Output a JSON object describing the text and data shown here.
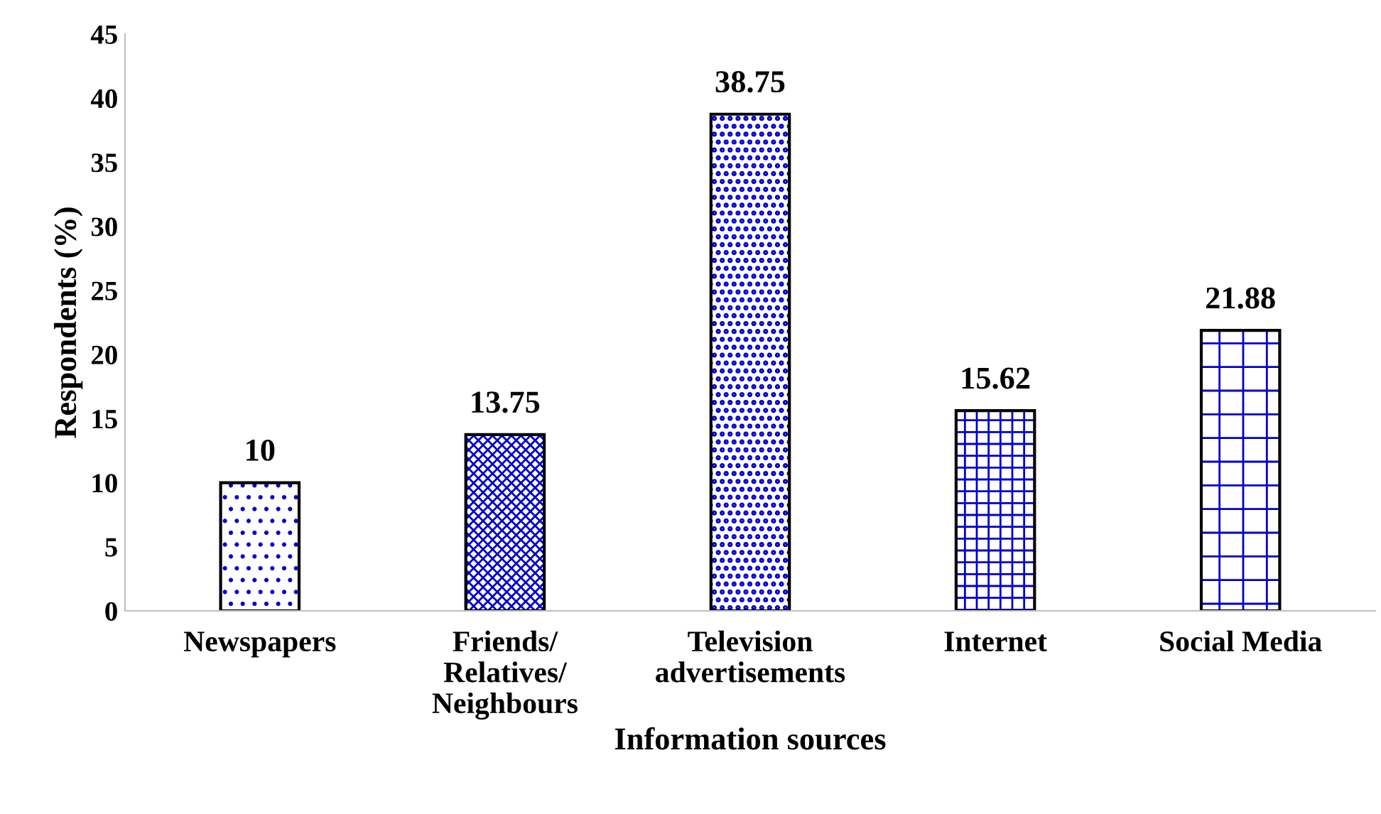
{
  "chart_data": {
    "type": "bar",
    "xlabel": "Information sources",
    "ylabel": "Respondents (%)",
    "categories": [
      "Newspapers",
      "Friends/\nRelatives/\nNeighbours",
      "Television\nadvertisements",
      "Internet",
      "Social Media"
    ],
    "values": [
      10,
      13.75,
      38.75,
      15.62,
      21.88
    ],
    "colors": [
      "#0000cc",
      "#0000cc",
      "#0000cc",
      "#0000cc",
      "#0000cc"
    ],
    "ylim": [
      0,
      45
    ],
    "yticks": [
      0,
      5,
      10,
      15,
      20,
      25,
      30,
      35,
      40,
      45
    ],
    "data_labels": true,
    "grid": false,
    "legend": false
  }
}
